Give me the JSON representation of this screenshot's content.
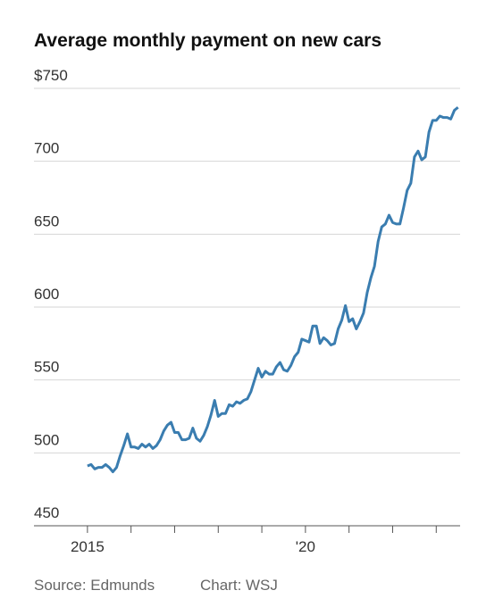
{
  "chart_data": {
    "type": "line",
    "title": "Average monthly payment on new cars",
    "source": "Source: Edmunds",
    "credit": "Chart: WSJ",
    "x": [
      2015,
      2015.083,
      2015.167,
      2015.25,
      2015.333,
      2015.417,
      2015.5,
      2015.583,
      2015.667,
      2015.75,
      2015.833,
      2015.917,
      2016,
      2016.083,
      2016.167,
      2016.25,
      2016.333,
      2016.417,
      2016.5,
      2016.583,
      2016.667,
      2016.75,
      2016.833,
      2016.917,
      2017,
      2017.083,
      2017.167,
      2017.25,
      2017.333,
      2017.417,
      2017.5,
      2017.583,
      2017.667,
      2017.75,
      2017.833,
      2017.917,
      2018,
      2018.083,
      2018.167,
      2018.25,
      2018.333,
      2018.417,
      2018.5,
      2018.583,
      2018.667,
      2018.75,
      2018.833,
      2018.917,
      2019,
      2019.083,
      2019.167,
      2019.25,
      2019.333,
      2019.417,
      2019.5,
      2019.583,
      2019.667,
      2019.75,
      2019.833,
      2019.917,
      2020,
      2020.083,
      2020.167,
      2020.25,
      2020.333,
      2020.417,
      2020.5,
      2020.583,
      2020.667,
      2020.75,
      2020.833,
      2020.917,
      2021,
      2021.083,
      2021.167,
      2021.25,
      2021.333,
      2021.417,
      2021.5,
      2021.583,
      2021.667,
      2021.75,
      2021.833,
      2021.917,
      2022,
      2022.083,
      2022.167,
      2022.25,
      2022.333,
      2022.417,
      2022.5,
      2022.583,
      2022.667,
      2022.75,
      2022.833,
      2022.917,
      2023,
      2023.083,
      2023.167,
      2023.25,
      2023.333,
      2023.417,
      2023.5
    ],
    "series": [
      {
        "name": "Average monthly payment",
        "color": "#3a7db0",
        "values": [
          491,
          492,
          489,
          490,
          490,
          492,
          490,
          487,
          490,
          498,
          505,
          513,
          504,
          504,
          503,
          506,
          504,
          506,
          503,
          505,
          509,
          515,
          519,
          521,
          514,
          514,
          509,
          509,
          510,
          517,
          510,
          508,
          512,
          518,
          526,
          536,
          525,
          527,
          527,
          533,
          532,
          535,
          534,
          536,
          537,
          542,
          550,
          558,
          552,
          556,
          554,
          554,
          559,
          562,
          557,
          556,
          560,
          566,
          569,
          578,
          577,
          576,
          587,
          587,
          575,
          579,
          577,
          574,
          575,
          585,
          591,
          601,
          590,
          592,
          585,
          590,
          596,
          610,
          620,
          628,
          645,
          655,
          657,
          663,
          658,
          657,
          657,
          668,
          680,
          685,
          703,
          707,
          701,
          703,
          720,
          728,
          728,
          731,
          730,
          730,
          729,
          735,
          737
        ]
      }
    ],
    "xlim": [
      2013.773,
      2023.773
    ],
    "ylim": [
      450,
      750
    ],
    "yticks": [
      450,
      500,
      550,
      600,
      650,
      700,
      {
        "value": 750,
        "label": "$750"
      }
    ],
    "xticks": [
      2015,
      {
        "value": 2020,
        "label": "'20"
      }
    ],
    "xminor_ticks": [
      2016,
      2017,
      2018,
      2019,
      2021,
      2022,
      2023
    ],
    "grid": true
  }
}
